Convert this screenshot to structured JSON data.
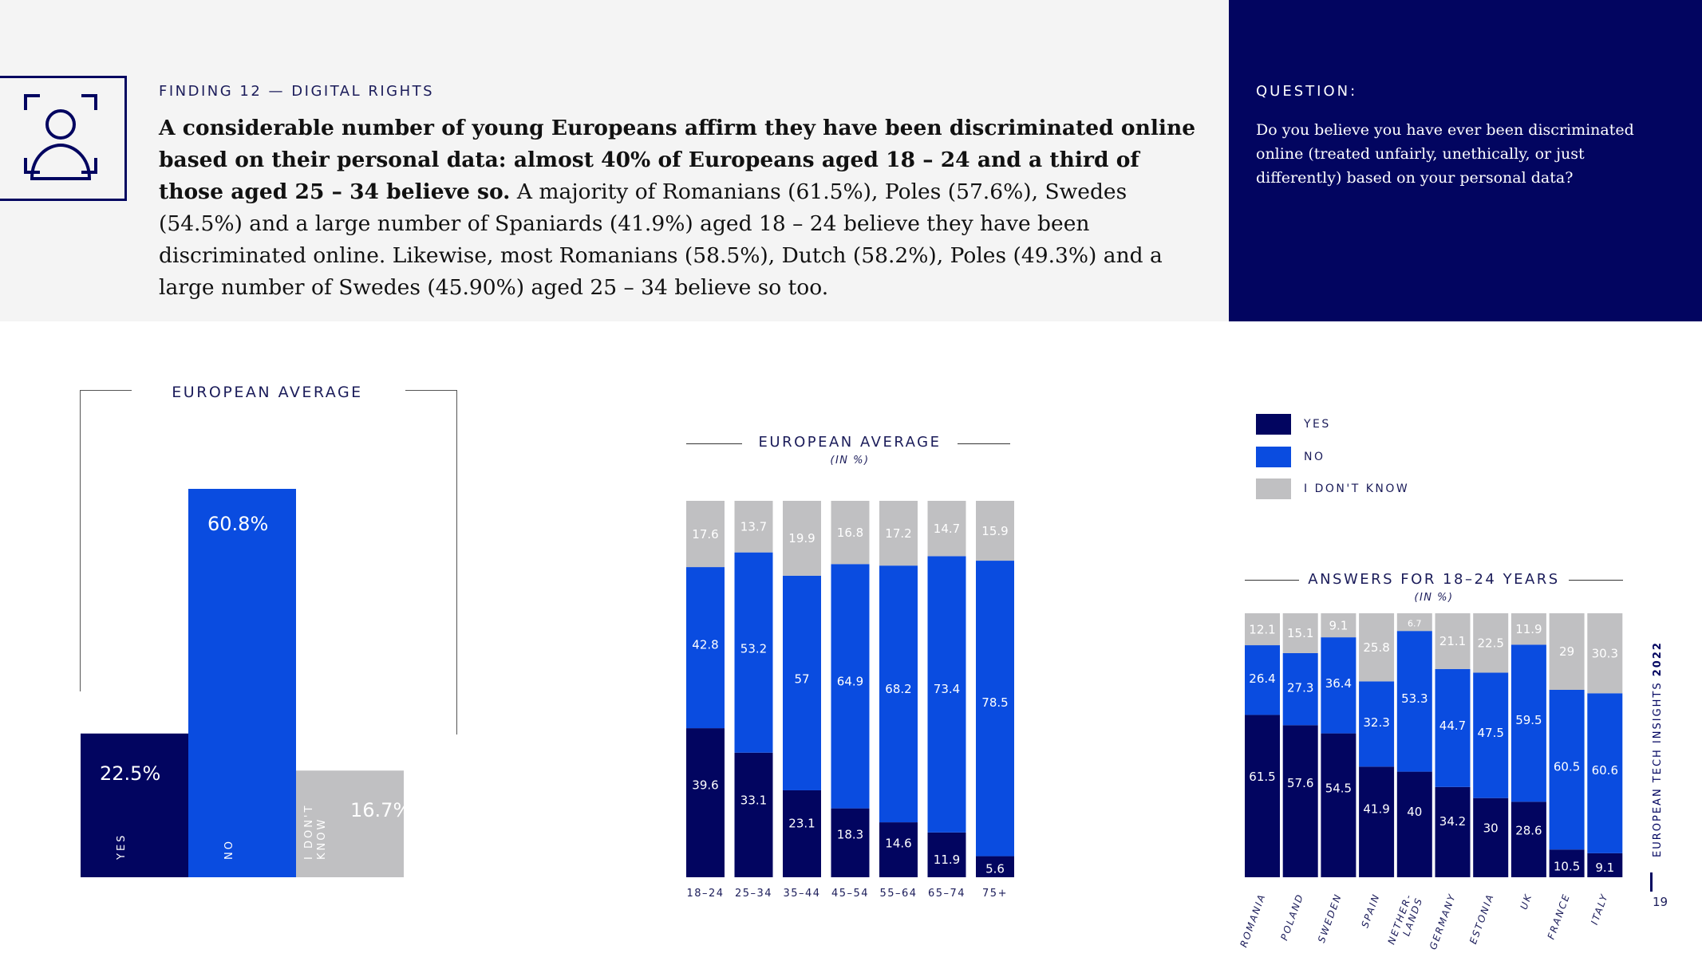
{
  "finding": {
    "label": "FINDING 12 — DIGITAL RIGHTS",
    "bold_text": "A considerable number of young Europeans affirm they have been discriminated online based on their personal data: almost 40% of Europeans aged 18 – 24 and a third of those aged 25 – 34 believe so.",
    "body_text": " A majority of Romanians (61.5%), Poles (57.6%), Swedes (54.5%) and a large number of Spaniards (41.9%) aged 18 – 24 believe they have been discriminated online. Likewise, most Romanians (58.5%), Dutch (58.2%), Poles (49.3%) and a large number of Swedes (45.90%) aged 25 – 34 believe so too."
  },
  "question": {
    "label": "QUESTION:",
    "text": "Do you believe you have ever been discriminated online (treated unfairly, unethically, or just differently) based on your personal data?"
  },
  "colors": {
    "yes": "#020560",
    "no": "#0a4ce0",
    "dont_know": "#c0c0c2",
    "navy": "#020560"
  },
  "legend": {
    "yes": "YES",
    "no": "NO",
    "dont_know": "I DON'T KNOW"
  },
  "footer": {
    "report": "EUROPEAN TECH INSIGHTS",
    "year": "2022",
    "page": "19"
  },
  "chart_data": [
    {
      "type": "bar",
      "title": "EUROPEAN AVERAGE",
      "categories": [
        "YES",
        "NO",
        "I DON'T KNOW"
      ],
      "values": [
        22.5,
        60.8,
        16.7
      ],
      "labels": [
        "22.5%",
        "60.8%",
        "16.7%"
      ],
      "ylim": [
        0,
        70
      ]
    },
    {
      "type": "bar",
      "stacked": true,
      "title": "EUROPEAN AVERAGE",
      "subtitle": "(IN %)",
      "categories": [
        "18–24",
        "25–34",
        "35–44",
        "45–54",
        "55–64",
        "65–74",
        "75+"
      ],
      "series": [
        {
          "name": "YES",
          "values": [
            39.6,
            33.1,
            23.1,
            18.3,
            14.6,
            11.9,
            5.6
          ]
        },
        {
          "name": "NO",
          "values": [
            42.8,
            53.2,
            57,
            64.9,
            68.2,
            73.4,
            78.5
          ]
        },
        {
          "name": "I DON'T KNOW",
          "values": [
            17.6,
            13.7,
            19.9,
            16.8,
            17.2,
            14.7,
            15.9
          ]
        }
      ]
    },
    {
      "type": "bar",
      "stacked": true,
      "title": "ANSWERS FOR 18–24 YEARS",
      "subtitle": "(IN %)",
      "categories": [
        "ROMANIA",
        "POLAND",
        "SWEDEN",
        "SPAIN",
        "NETHER-\nLANDS",
        "GERMANY",
        "ESTONIA",
        "UK",
        "FRANCE",
        "ITALY"
      ],
      "series": [
        {
          "name": "YES",
          "values": [
            61.5,
            57.6,
            54.5,
            41.9,
            40,
            34.2,
            30,
            28.6,
            10.5,
            9.1
          ]
        },
        {
          "name": "NO",
          "values": [
            26.4,
            27.3,
            36.4,
            32.3,
            53.3,
            44.7,
            47.5,
            59.5,
            60.5,
            60.6
          ]
        },
        {
          "name": "I DON'T KNOW",
          "values": [
            12.1,
            15.1,
            9.1,
            25.8,
            6.7,
            21.1,
            22.5,
            11.9,
            29,
            30.3
          ]
        }
      ]
    }
  ]
}
